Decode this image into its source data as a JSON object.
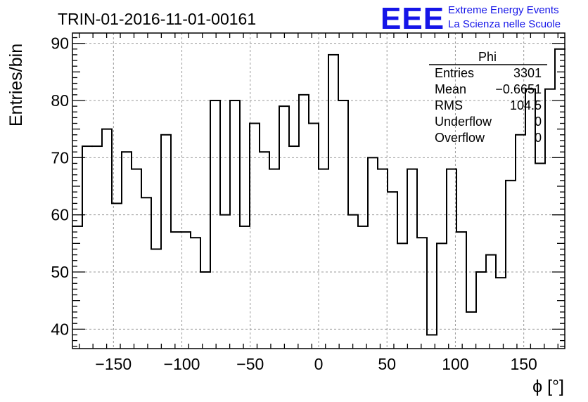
{
  "header": {
    "run_title": "TRIN-01-2016-11-01-00161",
    "brand_logo": "EEE",
    "brand_line1": "Extreme Energy Events",
    "brand_line2": "La Scienza nelle Scuole"
  },
  "colors": {
    "brand": "#1515e8",
    "histogram": "#000000",
    "grid": "#9a9a9a",
    "background": "#ffffff"
  },
  "stats_box": {
    "title": "Phi",
    "rows": [
      {
        "label": "Entries",
        "value": "3301"
      },
      {
        "label": "Mean",
        "value": "−0.6651"
      },
      {
        "label": "RMS",
        "value": "104.5"
      },
      {
        "label": "Underflow",
        "value": "0"
      },
      {
        "label": "Overflow",
        "value": "0"
      }
    ]
  },
  "chart_data": {
    "type": "histogram",
    "title": "TRIN-01-2016-11-01-00161",
    "xlabel": "ϕ [°]",
    "ylabel": "Entries/bin",
    "xlim": [
      -180,
      180
    ],
    "ylim": [
      36.6,
      91.8
    ],
    "bin_edges_start": -180,
    "bin_width": 7.2,
    "values": [
      58,
      72,
      72,
      75,
      62,
      71,
      68,
      63,
      54,
      74,
      57,
      57,
      56,
      50,
      80,
      60,
      80,
      58,
      76,
      71,
      68,
      79,
      72,
      81,
      76,
      68,
      88,
      80,
      60,
      58,
      70,
      68,
      64,
      55,
      68,
      56,
      39,
      55,
      68,
      57,
      43,
      50,
      53,
      49,
      66,
      74,
      82,
      69,
      82,
      89
    ],
    "x_ticks": [
      -150,
      -100,
      -50,
      0,
      50,
      100,
      150
    ],
    "x_tick_labels": [
      "−150",
      "−100",
      "−50",
      "0",
      "50",
      "100",
      "150"
    ],
    "y_ticks": [
      40,
      50,
      60,
      70,
      80,
      90
    ],
    "y_tick_labels": [
      "40",
      "50",
      "60",
      "70",
      "80",
      "90"
    ],
    "grid": true,
    "legend": "stats box top-right"
  }
}
